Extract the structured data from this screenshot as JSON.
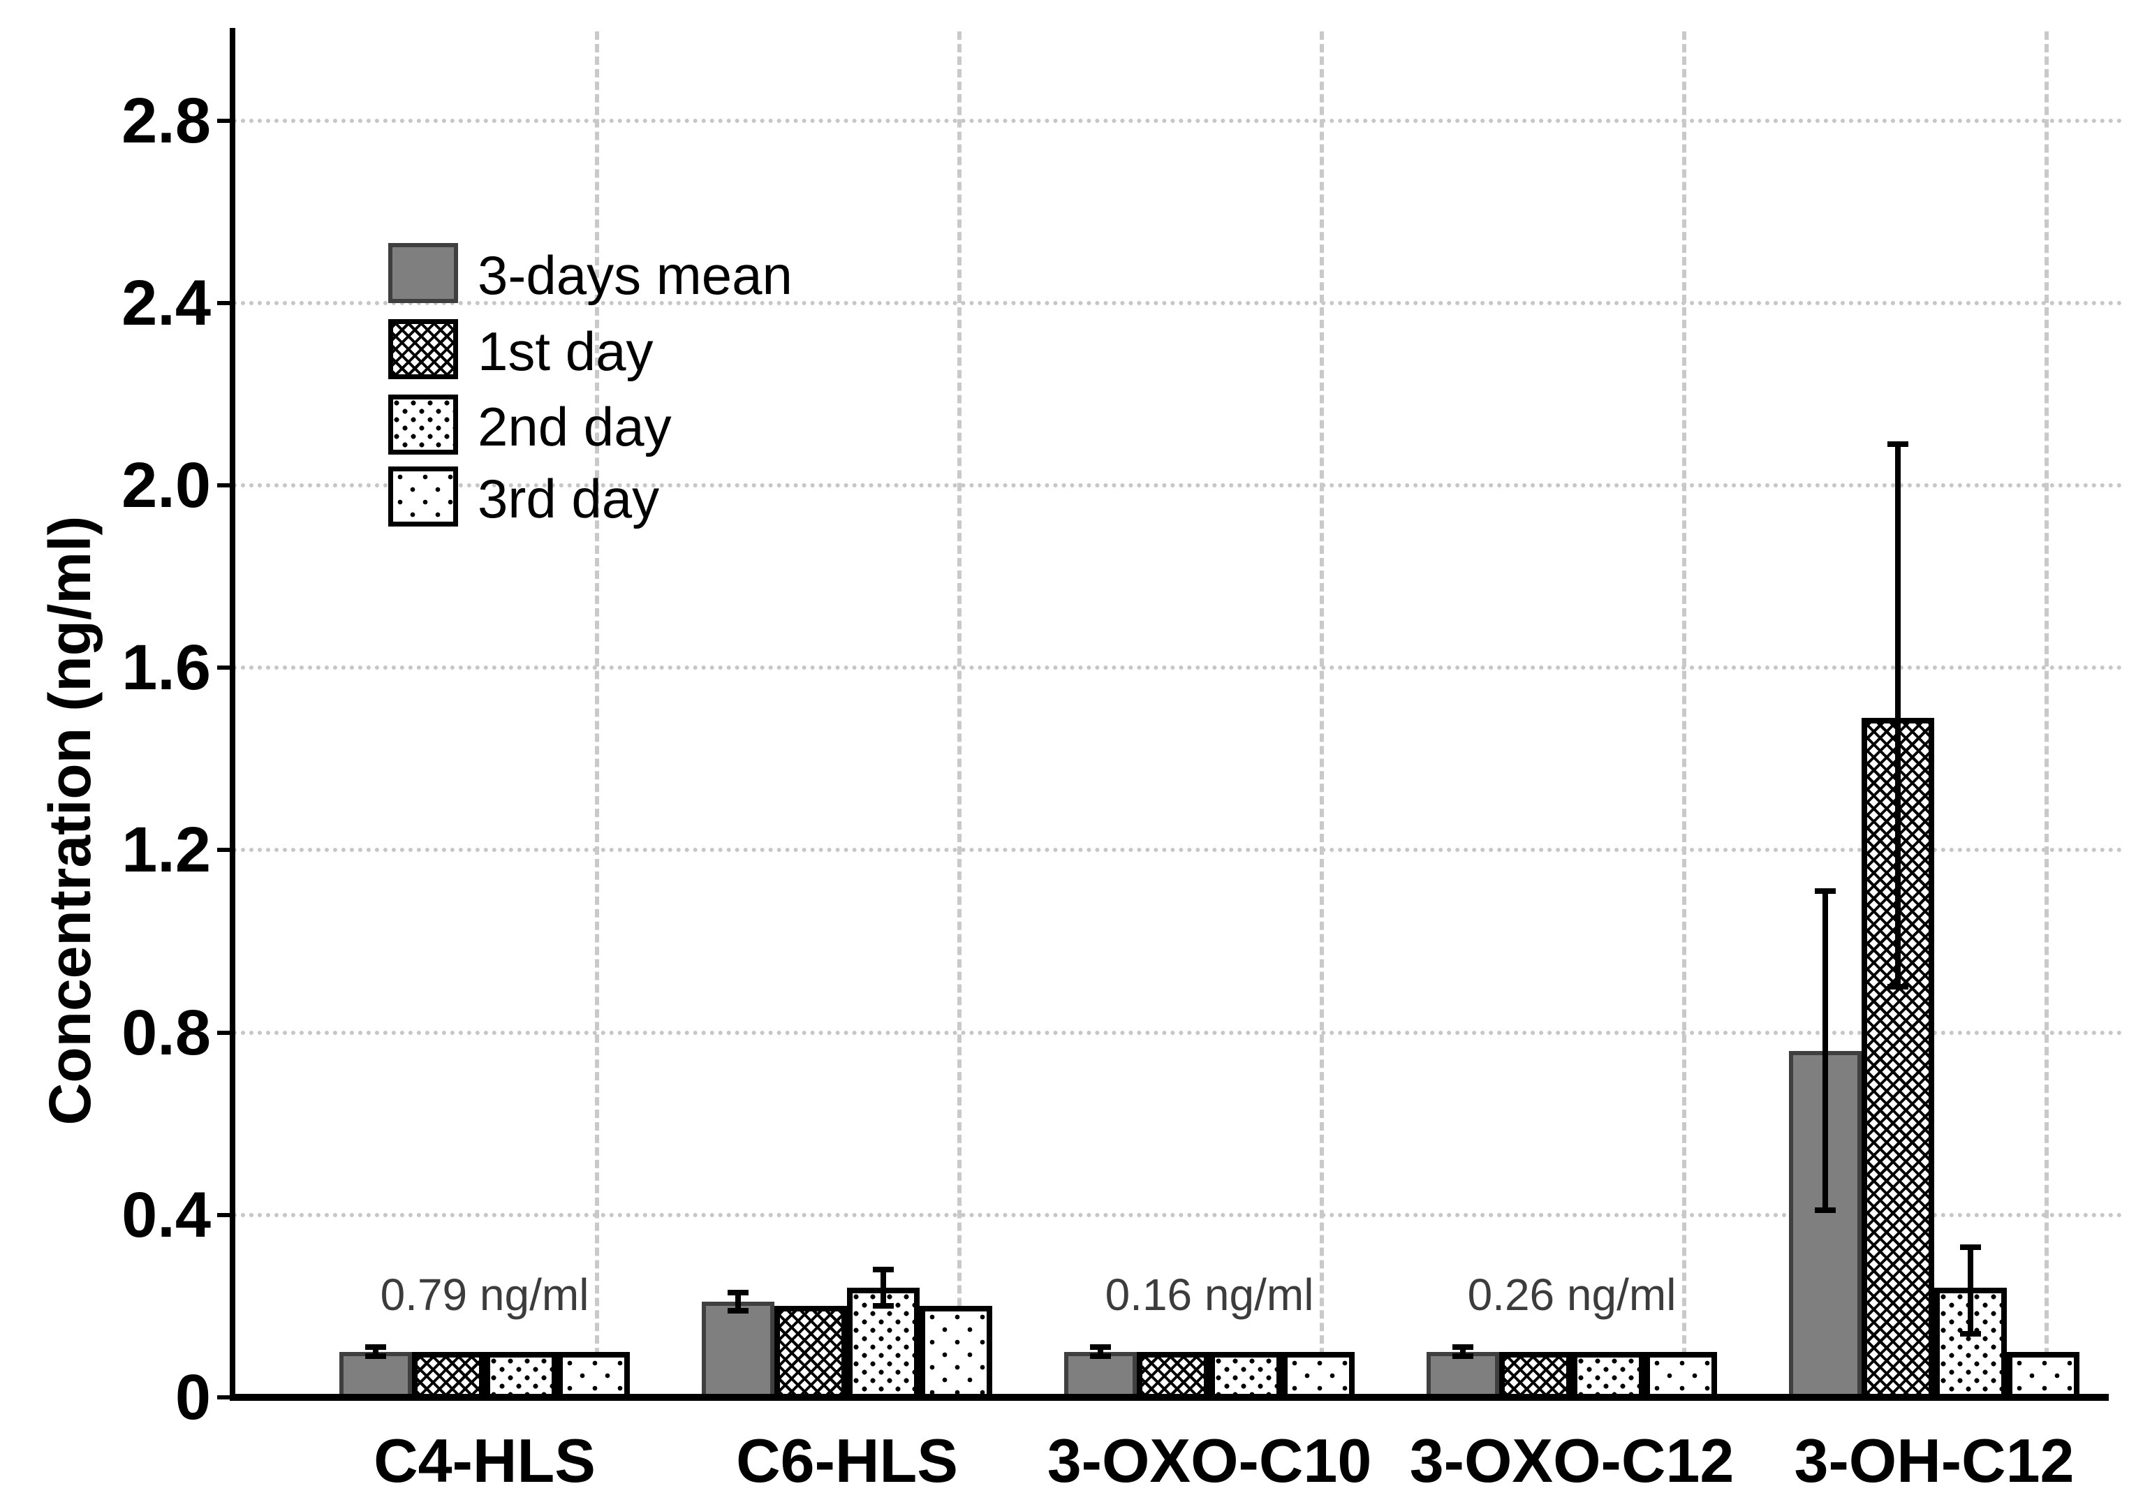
{
  "chart_data": {
    "type": "bar",
    "title": "",
    "ylabel": "Concentration (ng/ml)",
    "xlabel": "",
    "ylim": [
      0,
      3.0
    ],
    "yticks": [
      0,
      0.4,
      0.8,
      1.2,
      1.6,
      2.0,
      2.4,
      2.8
    ],
    "ytick_labels": [
      "0",
      "0.4",
      "0.8",
      "1.2",
      "1.6",
      "2.0",
      "2.4",
      "2.8"
    ],
    "grid": {
      "horizontal": "dotted light gray every 0.4",
      "vertical": "dashed light gray at category boundaries"
    },
    "legend_position": "upper-left-inside",
    "categories": [
      "C4-HLS",
      "C6-HLS",
      "3-OXO-C10",
      "3-OXO-C12",
      "3-OH-C12"
    ],
    "series": [
      {
        "name": "3-days mean",
        "pattern": "solid-gray",
        "fill_color": "#7f7f7f",
        "border_color": "#3f3f3f",
        "values": [
          0.1,
          0.21,
          0.1,
          0.1,
          0.76
        ],
        "error_low": [
          0.09,
          0.19,
          0.09,
          0.09,
          0.41
        ],
        "error_high": [
          0.11,
          0.23,
          0.11,
          0.11,
          1.11
        ]
      },
      {
        "name": "1st day",
        "pattern": "diagonal-crosshatch",
        "fill_color": "#ffffff",
        "border_color": "#000000",
        "values": [
          0.1,
          0.2,
          0.1,
          0.1,
          1.49
        ],
        "error_low": [
          null,
          null,
          null,
          null,
          0.9
        ],
        "error_high": [
          null,
          null,
          null,
          null,
          2.09
        ]
      },
      {
        "name": "2nd day",
        "pattern": "medium-dots",
        "fill_color": "#ffffff",
        "border_color": "#000000",
        "values": [
          0.1,
          0.24,
          0.1,
          0.1,
          0.24
        ],
        "error_low": [
          null,
          0.2,
          null,
          null,
          0.14
        ],
        "error_high": [
          null,
          0.28,
          null,
          null,
          0.33
        ]
      },
      {
        "name": "3rd day",
        "pattern": "sparse-dots",
        "fill_color": "#ffffff",
        "border_color": "#000000",
        "values": [
          0.1,
          0.2,
          0.1,
          0.1,
          0.1
        ],
        "error_low": [
          null,
          null,
          null,
          null,
          null
        ],
        "error_high": [
          null,
          null,
          null,
          null,
          null
        ]
      }
    ],
    "annotations": [
      {
        "category": "C4-HLS",
        "text": "0.79 ng/ml"
      },
      {
        "category": "3-OXO-C10",
        "text": "0.16 ng/ml"
      },
      {
        "category": "3-OXO-C12",
        "text": "0.26 ng/ml"
      }
    ],
    "colors": {
      "axis": "#000000",
      "gridline": "#c6c6c6",
      "bar_gray": "#7f7f7f",
      "annotation_text": "#3c3c3c"
    }
  }
}
